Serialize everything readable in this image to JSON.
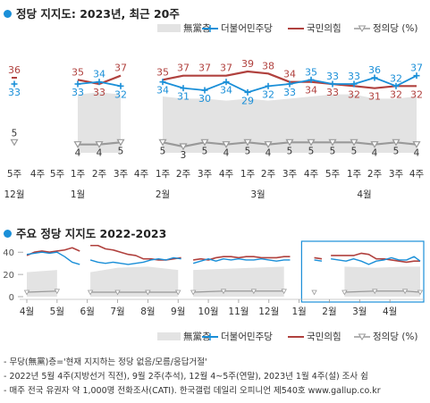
{
  "colors": {
    "dpk": "#1a8fd8",
    "ppp": "#b0413e",
    "jp": "#999999",
    "none": "#e3e3e3",
    "accent": "#1a8fd8"
  },
  "top": {
    "title": "정당 지지도: 2023년, 최근 20주",
    "legend": {
      "none": "無黨층",
      "dpk": "더불어민주당",
      "ppp": "국민의힘",
      "jp": "정의당 (%)"
    }
  },
  "bottom": {
    "title": "주요 정당 지지도 2022-2023",
    "legend": {
      "none": "無黨층",
      "dpk": "더불어민주당",
      "ppp": "국민의힘",
      "jp": "정의당 (%)"
    }
  },
  "notes": [
    "- 무당(無黨)층='현재 지지하는 정당 없음/모름/응답거절'",
    "- 2022년 5월 4주(지방선거 직전), 9월 2주(추석), 12월 4~5주(연말), 2023년 1월 4주(설) 조사 쉼",
    "- 매주 전국 유권자 약 1,000명 전화조사(CATI). 한국갤럽 데일리 오피니언 제540호 www.gallup.co.kr"
  ],
  "chart_data": [
    {
      "type": "line",
      "title": "정당 지지도: 2023년, 최근 20주",
      "x": [
        "5주",
        "4주",
        "5주",
        "1주",
        "2주",
        "3주",
        "4주",
        "1주",
        "2주",
        "3주",
        "4주",
        "1주",
        "2주",
        "3주",
        "4주",
        "5주",
        "1주",
        "2주",
        "3주",
        "4주"
      ],
      "month_labels": [
        {
          "label": "12월",
          "index": 0
        },
        {
          "label": "1월",
          "index": 3
        },
        {
          "label": "2월",
          "index": 7
        },
        {
          "label": "3월",
          "index": 11.5
        },
        {
          "label": "4월",
          "index": 16.5
        }
      ],
      "gaps_after_index": [
        0,
        1,
        2,
        5,
        6
      ],
      "series": [
        {
          "name": "더불어민주당",
          "values": [
            33,
            null,
            null,
            33,
            34,
            32,
            null,
            34,
            31,
            30,
            34,
            29,
            32,
            33,
            35,
            33,
            33,
            36,
            32,
            37
          ]
        },
        {
          "name": "국민의힘",
          "values": [
            36,
            null,
            null,
            35,
            33,
            37,
            null,
            35,
            37,
            37,
            37,
            39,
            38,
            34,
            34,
            33,
            32,
            31,
            32,
            32
          ]
        },
        {
          "name": "정의당",
          "values": [
            5,
            null,
            null,
            4,
            4,
            5,
            null,
            5,
            3,
            5,
            4,
            5,
            4,
            5,
            5,
            5,
            5,
            4,
            5,
            4
          ]
        },
        {
          "name": "無黨층",
          "values": [
            null,
            null,
            null,
            28,
            29,
            28,
            null,
            27,
            26,
            26,
            25,
            26,
            25,
            26,
            27,
            28,
            28,
            26,
            26,
            27
          ]
        }
      ],
      "data_labels": {
        "더불어민주당": [
          "33",
          null,
          null,
          "33",
          "34",
          "32",
          null,
          "34",
          "31",
          "30",
          "34",
          "29",
          "32",
          "33",
          "35",
          "33",
          "33",
          "36",
          "32",
          "37"
        ],
        "국민의힘": [
          "36",
          null,
          null,
          "35",
          "33",
          "37",
          null,
          "35",
          "37",
          "37",
          "37",
          "39",
          "38",
          "34",
          "34",
          "33",
          "32",
          "31",
          "32",
          "32"
        ],
        "정의당": [
          "5",
          null,
          null,
          "4",
          "4",
          "5",
          null,
          "5",
          "3",
          "5",
          "4",
          "5",
          "4",
          "5",
          "5",
          "5",
          "5",
          "4",
          "5",
          "4"
        ]
      },
      "ylim": [
        0,
        45
      ],
      "grid": false,
      "legend": "top-right"
    },
    {
      "type": "line",
      "title": "주요 정당 지지도 2022-2023",
      "month_labels": [
        "4월",
        "5월",
        "6월",
        "7월",
        "8월",
        "9월",
        "10월",
        "11월",
        "12월",
        "1월",
        "2월",
        "3월",
        "4월"
      ],
      "x_range_months": [
        0,
        13
      ],
      "yticks": [
        0,
        20,
        40
      ],
      "ylim": [
        0,
        45
      ],
      "highlight_range_months": [
        9.2,
        13
      ],
      "gaps_months": [
        [
          1.8,
          2.05
        ],
        [
          5.15,
          5.45
        ],
        [
          8.75,
          9.5
        ],
        [
          9.78,
          10.05
        ]
      ],
      "series": [
        {
          "name": "더불어민주당",
          "x_month": [
            0,
            0.25,
            0.5,
            0.75,
            1,
            1.25,
            1.5,
            1.75,
            2.1,
            2.35,
            2.6,
            2.85,
            3.1,
            3.35,
            3.6,
            3.85,
            4.1,
            4.35,
            4.6,
            4.85,
            5.1,
            5.5,
            5.75,
            6,
            6.25,
            6.5,
            6.75,
            7,
            7.25,
            7.5,
            7.75,
            8,
            8.25,
            8.5,
            8.7,
            9.5,
            9.75,
            10.05,
            10.3,
            10.55,
            10.8,
            11.05,
            11.3,
            11.55,
            11.8,
            12.05,
            12.3,
            12.55,
            12.8,
            13
          ],
          "values": [
            38,
            39,
            40,
            39,
            40,
            36,
            31,
            29,
            33,
            31,
            30,
            31,
            30,
            29,
            30,
            31,
            33,
            34,
            33,
            35,
            34,
            30,
            32,
            34,
            32,
            34,
            33,
            34,
            33,
            33,
            34,
            33,
            32,
            33,
            33,
            33,
            32,
            34,
            33,
            32,
            34,
            32,
            29,
            32,
            33,
            35,
            33,
            33,
            36,
            32
          ]
        },
        {
          "name": "국민의힘",
          "x_month": [
            0,
            0.25,
            0.5,
            0.75,
            1,
            1.25,
            1.5,
            1.75,
            2.1,
            2.35,
            2.6,
            2.85,
            3.1,
            3.35,
            3.6,
            3.85,
            4.1,
            4.35,
            4.6,
            4.85,
            5.1,
            5.5,
            5.75,
            6,
            6.25,
            6.5,
            6.75,
            7,
            7.25,
            7.5,
            7.75,
            8,
            8.25,
            8.5,
            8.7,
            9.5,
            9.75,
            10.05,
            10.3,
            10.55,
            10.8,
            11.05,
            11.3,
            11.55,
            11.8,
            12.05,
            12.3,
            12.55,
            12.8,
            13
          ],
          "values": [
            37,
            40,
            41,
            40,
            41,
            42,
            44,
            41,
            46,
            46,
            43,
            42,
            40,
            38,
            37,
            34,
            34,
            33,
            33,
            34,
            35,
            33,
            34,
            33,
            35,
            36,
            36,
            35,
            36,
            36,
            35,
            35,
            35,
            36,
            36,
            35,
            34,
            37,
            37,
            37,
            37,
            39,
            38,
            34,
            34,
            33,
            32,
            31,
            32,
            32
          ]
        },
        {
          "name": "정의당",
          "x_month": [
            0,
            1,
            2.1,
            3,
            4,
            5,
            5.5,
            6.5,
            7.5,
            8.5,
            9.5,
            10.5,
            11.5,
            12.5,
            13
          ],
          "values": [
            4,
            5,
            4,
            4,
            4,
            4,
            4,
            5,
            5,
            5,
            4,
            4,
            5,
            5,
            4
          ]
        },
        {
          "name": "無黨층",
          "x_month": [
            0,
            1,
            2.1,
            3,
            4,
            5,
            5.5,
            6.5,
            7.5,
            8.5,
            9.5,
            10.5,
            11.5,
            12.5,
            13
          ],
          "values": [
            22,
            24,
            22,
            26,
            27,
            24,
            24,
            25,
            26,
            27,
            28,
            27,
            26,
            27,
            27
          ]
        }
      ],
      "legend": "bottom-right"
    }
  ]
}
